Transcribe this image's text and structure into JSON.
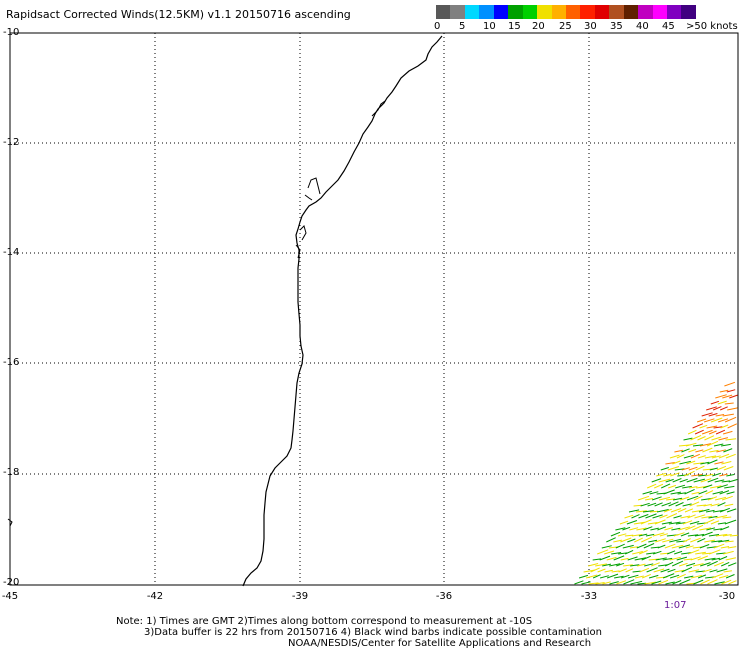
{
  "title": "Rapidsact Corrected Winds(12.5KM) v1.1 20150716 ascending",
  "scale": {
    "colors": [
      "#585858",
      "#808080",
      "#00d8ff",
      "#0090ff",
      "#0000ff",
      "#00a000",
      "#00d000",
      "#f0e000",
      "#ffb000",
      "#ff6000",
      "#ff2000",
      "#e00000",
      "#b05020",
      "#602000",
      "#c000c0",
      "#ff00ff",
      "#8000c0",
      "#400080"
    ],
    "labels": [
      "0",
      "5",
      "10",
      "15",
      "20",
      "25",
      "30",
      "35",
      "40",
      "45",
      ">50 knots"
    ]
  },
  "axes": {
    "lat_labels": [
      "-10",
      "-12",
      "-14",
      "-16",
      "-18",
      "-20"
    ],
    "lon_labels": [
      "-45",
      "-42",
      "-39",
      "-36",
      "-33",
      "-30"
    ]
  },
  "time_label": "1:07",
  "notes": [
    "Note: 1) Times are GMT 2)Times along bottom correspond to measurement at -10S",
    "3)Data buffer is 22 hrs from 20150716 4) Black wind barbs indicate possible contamination",
    "NOAA/NESDIS/Center for Satellite Applications and Research"
  ],
  "colors": {
    "coast": "#000000",
    "grid": "#000000",
    "wind_yellow": "#f0e000",
    "wind_green": "#00a000",
    "wind_orange": "#ff8000",
    "wind_red": "#e02000"
  }
}
